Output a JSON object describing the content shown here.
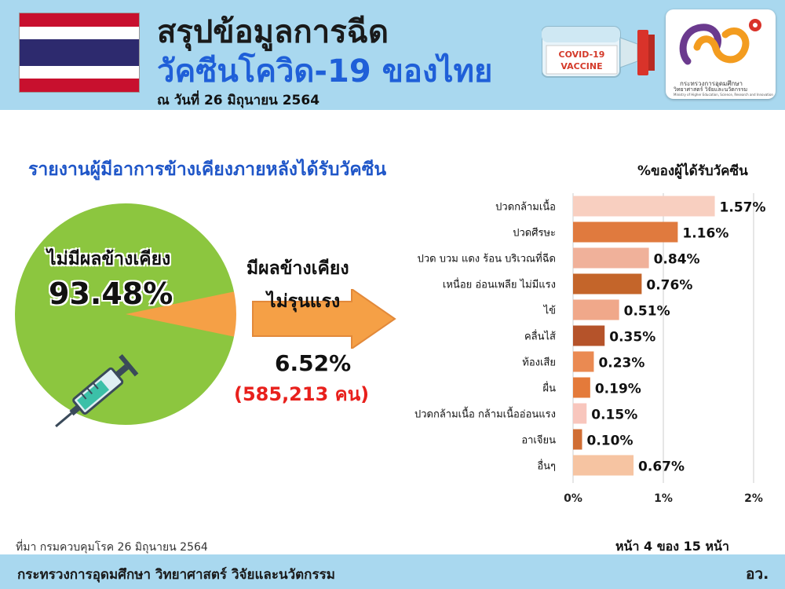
{
  "header": {
    "title_line1": "สรุปข้อมูลการฉีด",
    "title_line2": "วัคซีนโควิด-19 ของไทย",
    "date": "ณ วันที่ 26 มิถุนายน 2564",
    "vial_label_1": "COVID-19",
    "vial_label_2": "VACCINE",
    "logo_line1": "กระทรวงการอุดมศึกษา",
    "logo_line2": "วิทยาศาสตร์ วิจัยและนวัตกรรม",
    "logo_line3": "Ministry of Higher Education, Science, Research and Innovation"
  },
  "report": {
    "subtitle": "รายงานผู้มีอาการข้างเคียงภายหลังได้รับวัคซีน",
    "no_side_effect_label": "ไม่มีผลข้างเคียง",
    "no_side_effect_value": "93.48%",
    "mild_label_line1": "มีผลข้างเคียง",
    "mild_label_line2": "ไม่รุนแรง",
    "mild_value": "6.52%",
    "mild_count": "(585,213 คน)"
  },
  "pie_data": {
    "no_side_effect": 93.48,
    "mild_side_effect": 6.52
  },
  "chart_data": {
    "type": "bar",
    "orientation": "horizontal",
    "title": "%ของผู้ได้รับวัคซีน",
    "categories": [
      "ปวดกล้ามเนื้อ",
      "ปวดศีรษะ",
      "ปวด บวม แดง ร้อน บริเวณที่ฉีด",
      "เหนื่อย อ่อนเพลีย ไม่มีแรง",
      "ไข้",
      "คลื่นไส้",
      "ท้องเสีย",
      "ผื่น",
      "ปวดกล้ามเนื้อ กล้ามเนื้ออ่อนแรง",
      "อาเจียน",
      "อื่นๆ"
    ],
    "values": [
      1.57,
      1.16,
      0.84,
      0.76,
      0.51,
      0.35,
      0.23,
      0.19,
      0.15,
      0.1,
      0.67
    ],
    "value_labels": [
      "1.57%",
      "1.16%",
      "0.84%",
      "0.76%",
      "0.51%",
      "0.35%",
      "0.23%",
      "0.19%",
      "0.15%",
      "0.10%",
      "0.67%"
    ],
    "colors": [
      "#f8cfc0",
      "#e07a3e",
      "#f0b19a",
      "#c4652a",
      "#f0a88a",
      "#b5532a",
      "#ea8a52",
      "#e47a3a",
      "#f8c6bd",
      "#d06e34",
      "#f6c4a2"
    ],
    "xlim": [
      0,
      2
    ],
    "xticks": [
      0,
      1,
      2
    ],
    "xtick_labels": [
      "0%",
      "1%",
      "2%"
    ],
    "grid": true
  },
  "footer": {
    "source": "ที่มา กรมควบคุมโรค 26 มิถุนายน 2564",
    "page": "หน้า 4 ของ 15 หน้า",
    "org": "กระทรวงการอุดมศึกษา วิทยาศาสตร์ วิจัยและนวัตกรรม",
    "abbr": "อว."
  }
}
